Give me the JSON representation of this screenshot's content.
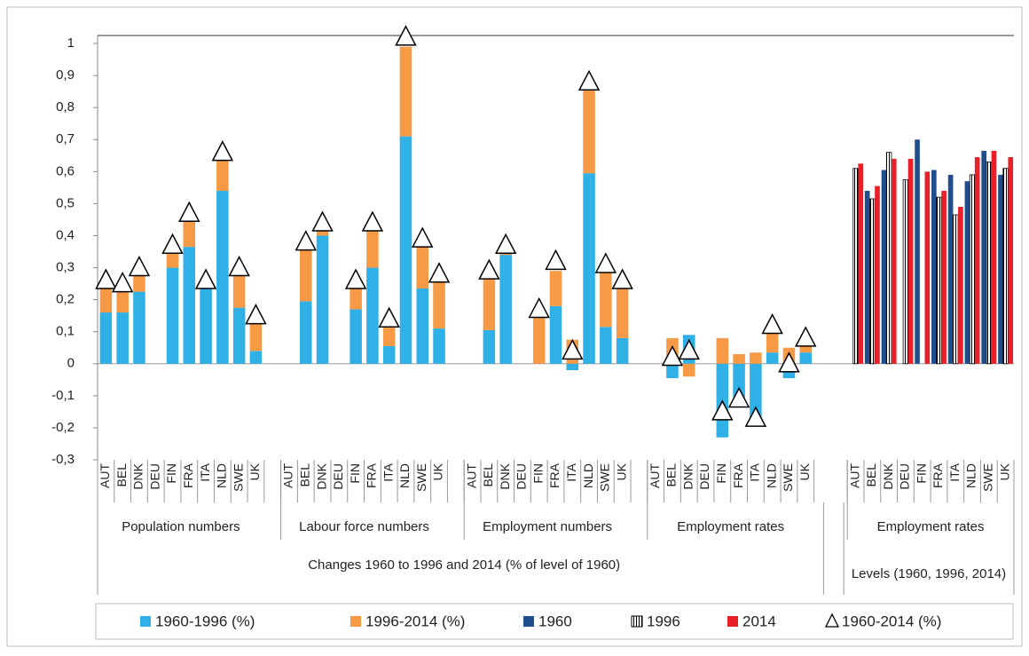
{
  "chart_data": {
    "type": "bar",
    "ylim": [
      -0.3,
      1.025
    ],
    "yticks": [
      {
        "value": -0.3,
        "label": "-0,3"
      },
      {
        "value": -0.2,
        "label": "-0,2"
      },
      {
        "value": -0.1,
        "label": "-0,1"
      },
      0,
      {
        "value": 0.1,
        "label": "0,1"
      },
      {
        "value": 0.2,
        "label": "0,2"
      },
      {
        "value": 0.3,
        "label": "0,3"
      },
      {
        "value": 0.4,
        "label": "0,4"
      },
      {
        "value": 0.5,
        "label": "0,5"
      },
      {
        "value": 0.6,
        "label": "0,6"
      },
      {
        "value": 0.7,
        "label": "0,7"
      },
      {
        "value": 0.8,
        "label": "0,8"
      },
      {
        "value": 0.9,
        "label": "0,9"
      },
      1
    ],
    "grid": false,
    "legend": "bottom",
    "sections": [
      {
        "label": "Changes 1960 to 1996 and 2014 (% of level of 1960)",
        "layout": "stacked",
        "series": [
          {
            "name": "1960-1996 (%)",
            "type": "bar",
            "color": "#2fb0e6"
          },
          {
            "name": "1996-2014 (%)",
            "type": "bar",
            "color": "#f79a46"
          },
          {
            "name": "1960-2014 (%)",
            "type": "scatter",
            "marker": "triangle",
            "color": "#000000"
          }
        ],
        "groups": [
          {
            "name": "Population numbers",
            "categories": [
              "AUT",
              "BEL",
              "DNK",
              "DEU",
              "FIN",
              "FRA",
              "ITA",
              "NLD",
              "SWE",
              "UK"
            ],
            "values": [
              [
                0.16,
                0.16,
                0.225,
                null,
                0.3,
                0.365,
                0.235,
                0.54,
                0.175,
                0.04
              ],
              [
                0.075,
                0.07,
                0.055,
                null,
                0.05,
                0.085,
                0.005,
                0.095,
                0.105,
                0.095
              ],
              [
                0.26,
                0.25,
                0.3,
                null,
                0.37,
                0.47,
                0.26,
                0.66,
                0.3,
                0.15
              ]
            ]
          },
          {
            "name": "Labour force numbers",
            "categories": [
              "AUT",
              "BEL",
              "DNK",
              "DEU",
              "FIN",
              "FRA",
              "ITA",
              "NLD",
              "SWE",
              "UK"
            ],
            "values": [
              [
                null,
                0.195,
                0.4,
                null,
                0.17,
                0.3,
                0.055,
                0.71,
                0.235,
                0.11
              ],
              [
                null,
                0.17,
                0.015,
                null,
                0.065,
                0.12,
                0.06,
                0.28,
                0.13,
                0.145
              ],
              [
                null,
                0.38,
                0.44,
                null,
                0.26,
                0.44,
                0.14,
                1.02,
                0.39,
                0.28
              ]
            ]
          },
          {
            "name": "Employment numbers",
            "categories": [
              "AUT",
              "BEL",
              "DNK",
              "DEU",
              "FIN",
              "FRA",
              "ITA",
              "NLD",
              "SWE",
              "UK"
            ],
            "values": [
              [
                null,
                0.105,
                0.34,
                null,
                0,
                0.18,
                -0.02,
                0.595,
                0.115,
                0.08
              ],
              [
                null,
                0.165,
                0.015,
                null,
                0.15,
                0.11,
                0.075,
                0.275,
                0.17,
                0.175
              ],
              [
                null,
                0.29,
                0.37,
                null,
                0.17,
                0.32,
                0.04,
                0.88,
                0.31,
                0.26
              ]
            ]
          },
          {
            "name": "Employment rates",
            "categories": [
              "AUT",
              "BEL",
              "DNK",
              "DEU",
              "FIN",
              "FRA",
              "ITA",
              "NLD",
              "SWE",
              "UK"
            ],
            "values": [
              [
                null,
                -0.045,
                0.09,
                null,
                -0.23,
                -0.12,
                -0.175,
                0.035,
                -0.045,
                0.035
              ],
              [
                null,
                0.08,
                -0.04,
                null,
                0.08,
                0.03,
                0.035,
                0.065,
                0.05,
                0.03
              ],
              [
                null,
                0.02,
                0.04,
                null,
                -0.15,
                -0.11,
                -0.17,
                0.12,
                0,
                0.08
              ]
            ]
          }
        ]
      },
      {
        "label": "Levels (1960, 1996, 2014)",
        "layout": "clustered",
        "series": [
          {
            "name": "1960",
            "type": "bar",
            "color": "#1f4e8c"
          },
          {
            "name": "1996",
            "type": "bar",
            "color": "#ffffff",
            "pattern": "vertical-stripes"
          },
          {
            "name": "2014",
            "type": "bar",
            "color": "#e8202a"
          }
        ],
        "groups": [
          {
            "name": "Employment rates",
            "categories": [
              "AUT",
              "BEL",
              "DNK",
              "DEU",
              "FIN",
              "FRA",
              "ITA",
              "NLD",
              "SWE",
              "UK"
            ],
            "values": [
              [
                null,
                0.54,
                0.605,
                null,
                0.7,
                0.605,
                0.59,
                0.57,
                0.665,
                0.59
              ],
              [
                0.61,
                0.515,
                0.66,
                0.575,
                null,
                0.52,
                0.465,
                0.59,
                0.63,
                0.61
              ],
              [
                0.625,
                0.555,
                0.64,
                0.64,
                0.6,
                0.54,
                0.49,
                0.645,
                0.665,
                0.645
              ]
            ]
          }
        ]
      }
    ]
  }
}
